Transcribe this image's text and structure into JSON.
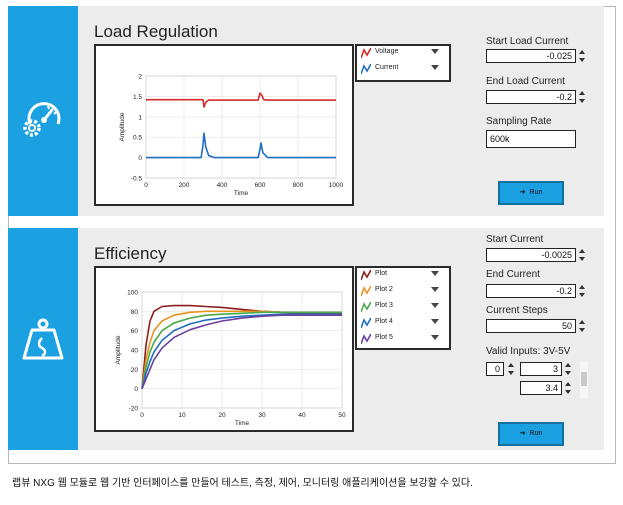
{
  "load_regulation": {
    "title": "Load Regulation",
    "legend": [
      {
        "label": "Voltage",
        "color": "#d62a2a"
      },
      {
        "label": "Current",
        "color": "#1f6fbf"
      }
    ],
    "chart_data": {
      "type": "line",
      "xlabel": "Time",
      "ylabel": "Amplitude",
      "xlim": [
        0,
        1000
      ],
      "ylim": [
        -0.5,
        2
      ],
      "xticks": [
        0,
        200,
        400,
        600,
        800,
        1000
      ],
      "yticks": [
        2,
        1.5,
        1,
        0.5,
        0,
        -0.5
      ],
      "series": [
        {
          "name": "Voltage",
          "color": "#d62a2a",
          "x": [
            0,
            290,
            300,
            305,
            315,
            330,
            590,
            600,
            610,
            620,
            640,
            1000
          ],
          "y": [
            1.42,
            1.42,
            1.42,
            1.24,
            1.36,
            1.41,
            1.41,
            1.58,
            1.52,
            1.42,
            1.41,
            1.41
          ]
        },
        {
          "name": "Current",
          "color": "#1f6fbf",
          "x": [
            0,
            290,
            300,
            305,
            315,
            330,
            360,
            590,
            600,
            605,
            615,
            640,
            1000
          ],
          "y": [
            0.0,
            0.0,
            0.3,
            0.6,
            0.25,
            0.05,
            0.0,
            0.0,
            0.2,
            0.36,
            0.12,
            0.0,
            0.0
          ]
        }
      ]
    },
    "controls": {
      "start_load_current": {
        "label": "Start Load Current",
        "value": "-0.025"
      },
      "end_load_current": {
        "label": "End Load Current",
        "value": "-0.2"
      },
      "sampling_rate": {
        "label": "Sampling Rate",
        "value": "600k"
      },
      "run_label": "Run"
    }
  },
  "efficiency": {
    "title": "Efficiency",
    "legend": [
      {
        "label": "Plot",
        "color": "#8b1d1d"
      },
      {
        "label": "Plot 2",
        "color": "#e8931e"
      },
      {
        "label": "Plot 3",
        "color": "#4aa84a"
      },
      {
        "label": "Plot 4",
        "color": "#1f6fbf"
      },
      {
        "label": "Plot 5",
        "color": "#6a3fa0"
      }
    ],
    "chart_data": {
      "type": "line",
      "xlabel": "Time",
      "ylabel": "Amplitude",
      "xlim": [
        0,
        50
      ],
      "ylim": [
        -20,
        100
      ],
      "xticks": [
        0,
        10,
        20,
        30,
        40,
        50
      ],
      "yticks": [
        100,
        80,
        60,
        40,
        20,
        0,
        -20
      ],
      "series": [
        {
          "name": "Plot",
          "color": "#8b1d1d",
          "x": [
            0,
            1,
            2,
            3,
            5,
            8,
            12,
            16,
            20,
            25,
            30,
            35,
            40,
            45,
            50
          ],
          "y": [
            0,
            45,
            70,
            80,
            85,
            86,
            86,
            85,
            84,
            82,
            80,
            79,
            78,
            78,
            78
          ]
        },
        {
          "name": "Plot 2",
          "color": "#e8931e",
          "x": [
            0,
            1,
            2,
            3,
            5,
            8,
            12,
            16,
            20,
            25,
            30,
            35,
            40,
            45,
            50
          ],
          "y": [
            0,
            30,
            48,
            60,
            70,
            76,
            79,
            80,
            80,
            80,
            80,
            79,
            79,
            79,
            79
          ]
        },
        {
          "name": "Plot 3",
          "color": "#4aa84a",
          "x": [
            0,
            1,
            2,
            3,
            5,
            8,
            12,
            16,
            20,
            25,
            30,
            35,
            40,
            45,
            50
          ],
          "y": [
            0,
            22,
            38,
            48,
            60,
            68,
            73,
            76,
            77,
            78,
            79,
            79,
            79,
            79,
            79
          ]
        },
        {
          "name": "Plot 4",
          "color": "#1f6fbf",
          "x": [
            0,
            1,
            2,
            3,
            5,
            8,
            12,
            16,
            20,
            25,
            30,
            35,
            40,
            45,
            50
          ],
          "y": [
            0,
            16,
            28,
            38,
            50,
            60,
            67,
            71,
            73,
            75,
            76,
            77,
            77,
            77,
            77
          ]
        },
        {
          "name": "Plot 5",
          "color": "#6a3fa0",
          "x": [
            0,
            1,
            2,
            3,
            5,
            8,
            12,
            16,
            20,
            25,
            30,
            35,
            40,
            45,
            50
          ],
          "y": [
            0,
            10,
            20,
            30,
            42,
            53,
            61,
            66,
            70,
            73,
            75,
            76,
            76,
            76,
            76
          ]
        }
      ]
    },
    "controls": {
      "start_current": {
        "label": "Start Current",
        "value": "-0.0025"
      },
      "end_current": {
        "label": "End Current",
        "value": "-0.2"
      },
      "current_steps": {
        "label": "Current Steps",
        "value": "50"
      },
      "valid_inputs": {
        "label": "Valid Inputs: 3V-5V",
        "index": "0",
        "values": [
          "3",
          "3.4"
        ]
      },
      "run_label": "Run"
    }
  },
  "caption": "랩뷰 NXG 웹 모듈로 웹 기반 인터페이스를 만들어 테스트, 측정, 제어, 모니터링 애플리케이션을 보강할 수 있다."
}
